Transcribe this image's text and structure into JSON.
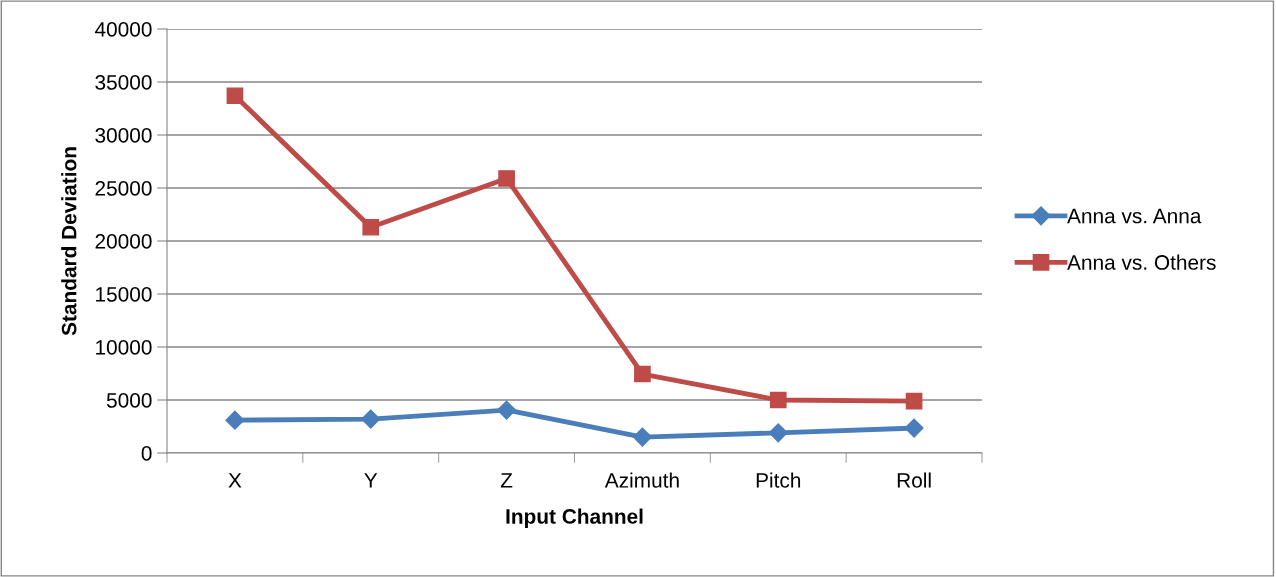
{
  "chart_data": {
    "type": "line",
    "xlabel": "Input Channel",
    "ylabel": "Standard Deviation",
    "categories": [
      "X",
      "Y",
      "Z",
      "Azimuth",
      "Pitch",
      "Roll"
    ],
    "series": [
      {
        "name": "Anna vs. Anna",
        "color": "#4a7ebb",
        "marker": "diamond",
        "values": [
          3100,
          3200,
          4050,
          1500,
          1900,
          2350
        ]
      },
      {
        "name": "Anna vs. Others",
        "color": "#be4b48",
        "marker": "square",
        "values": [
          33700,
          21300,
          25900,
          7450,
          5000,
          4900
        ]
      }
    ],
    "ylim": [
      0,
      40000
    ],
    "yticks": [
      0,
      5000,
      10000,
      15000,
      20000,
      25000,
      30000,
      35000,
      40000
    ],
    "grid": "y",
    "legend": "right",
    "line_style": "solid"
  }
}
